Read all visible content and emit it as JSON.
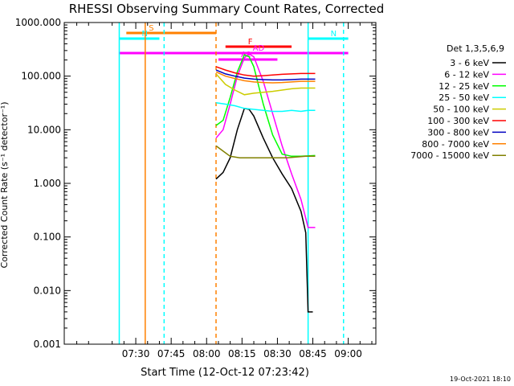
{
  "chart_data": {
    "type": "line",
    "title": "RHESSI Observing Summary Count Rates, Corrected",
    "xlabel": "Start Time (12-Oct-12 07:23:42)",
    "ylabel": "Corrected Count Rate (s⁻¹ detector⁻¹)",
    "ylog": true,
    "ylim": [
      0.001,
      1000
    ],
    "xlim_minutes": [
      -24.0,
      108.0
    ],
    "x_ticks": [
      "07:30",
      "07:45",
      "08:00",
      "08:15",
      "08:30",
      "08:45",
      "09:00"
    ],
    "y_ticks": [
      "1000.000",
      "100.000",
      "10.000",
      "1.000",
      "0.100",
      "0.010",
      "0.001"
    ],
    "legend_title": "Det 1,3,5,6,9",
    "legend_position": "right",
    "timestamp": "19-Oct-2021 18:10",
    "flags": [
      {
        "label": "S",
        "color": "#ff8000",
        "start": "07:26",
        "end": "08:04"
      },
      {
        "label": "N",
        "color": "#00ffff",
        "start": "07:23",
        "end": "07:40"
      },
      {
        "label": "N",
        "color": "#00ffff",
        "start": "08:43",
        "end": "09:00"
      },
      {
        "label": "F",
        "color": "#ff0000",
        "start": "08:08",
        "end": "08:36"
      },
      {
        "label": "AD",
        "color": "#ff00ff",
        "start": "08:10",
        "end": "08:32"
      },
      {
        "label": "A1",
        "color": "#ff00ff",
        "start": "08:05",
        "end": "08:30"
      },
      {
        "label": "",
        "color": "#ff00ff",
        "start": "07:23",
        "end": "09:00"
      }
    ],
    "vlines": [
      {
        "time": "07:23",
        "color": "#00ffff",
        "style": "solid"
      },
      {
        "time": "07:34",
        "color": "#ff8000",
        "style": "solid"
      },
      {
        "time": "07:42",
        "color": "#00ffff",
        "style": "dashed"
      },
      {
        "time": "08:04",
        "color": "#ff8000",
        "style": "dashed"
      },
      {
        "time": "08:43",
        "color": "#00ffff",
        "style": "solid"
      },
      {
        "time": "08:58",
        "color": "#00ffff",
        "style": "dashed"
      }
    ],
    "series": [
      {
        "name": "3 - 6 keV",
        "color": "#000000",
        "points": [
          [
            "08:04",
            1.2
          ],
          [
            "08:07",
            1.6
          ],
          [
            "08:10",
            3
          ],
          [
            "08:13",
            10
          ],
          [
            "08:16",
            25
          ],
          [
            "08:18",
            24
          ],
          [
            "08:20",
            18
          ],
          [
            "08:24",
            7
          ],
          [
            "08:28",
            3
          ],
          [
            "08:32",
            1.5
          ],
          [
            "08:36",
            0.8
          ],
          [
            "08:40",
            0.3
          ],
          [
            "08:42",
            0.12
          ],
          [
            "08:43",
            0.004
          ],
          [
            "08:45",
            0.004
          ]
        ]
      },
      {
        "name": "6 - 12 keV",
        "color": "#ff00ff",
        "points": [
          [
            "08:04",
            7
          ],
          [
            "08:07",
            10
          ],
          [
            "08:10",
            30
          ],
          [
            "08:13",
            100
          ],
          [
            "08:16",
            220
          ],
          [
            "08:18",
            260
          ],
          [
            "08:20",
            230
          ],
          [
            "08:24",
            80
          ],
          [
            "08:28",
            20
          ],
          [
            "08:32",
            5
          ],
          [
            "08:36",
            1.5
          ],
          [
            "08:40",
            0.5
          ],
          [
            "08:43",
            0.15
          ],
          [
            "08:46",
            0.15
          ]
        ]
      },
      {
        "name": "12 - 25 keV",
        "color": "#00ff00",
        "points": [
          [
            "08:04",
            12
          ],
          [
            "08:07",
            15
          ],
          [
            "08:10",
            40
          ],
          [
            "08:13",
            120
          ],
          [
            "08:16",
            250
          ],
          [
            "08:18",
            230
          ],
          [
            "08:20",
            150
          ],
          [
            "08:24",
            30
          ],
          [
            "08:28",
            8
          ],
          [
            "08:32",
            3.5
          ],
          [
            "08:36",
            3.2
          ],
          [
            "08:40",
            3.2
          ],
          [
            "08:46",
            3.3
          ]
        ]
      },
      {
        "name": "25 - 50 keV",
        "color": "#00ffff",
        "points": [
          [
            "08:04",
            32
          ],
          [
            "08:08",
            30
          ],
          [
            "08:12",
            28
          ],
          [
            "08:16",
            25
          ],
          [
            "08:20",
            24
          ],
          [
            "08:24",
            23
          ],
          [
            "08:28",
            22
          ],
          [
            "08:32",
            22
          ],
          [
            "08:36",
            23
          ],
          [
            "08:40",
            22
          ],
          [
            "08:43",
            23
          ],
          [
            "08:46",
            23
          ]
        ]
      },
      {
        "name": "50 - 100 keV",
        "color": "#cccc00",
        "points": [
          [
            "08:04",
            110
          ],
          [
            "08:08",
            70
          ],
          [
            "08:12",
            55
          ],
          [
            "08:16",
            45
          ],
          [
            "08:20",
            48
          ],
          [
            "08:24",
            50
          ],
          [
            "08:28",
            52
          ],
          [
            "08:32",
            55
          ],
          [
            "08:36",
            58
          ],
          [
            "08:40",
            60
          ],
          [
            "08:46",
            60
          ]
        ]
      },
      {
        "name": "100 - 300 keV",
        "color": "#ff0000",
        "points": [
          [
            "08:04",
            150
          ],
          [
            "08:08",
            130
          ],
          [
            "08:12",
            115
          ],
          [
            "08:16",
            105
          ],
          [
            "08:20",
            100
          ],
          [
            "08:24",
            102
          ],
          [
            "08:28",
            105
          ],
          [
            "08:32",
            108
          ],
          [
            "08:36",
            110
          ],
          [
            "08:40",
            112
          ],
          [
            "08:46",
            112
          ]
        ]
      },
      {
        "name": "300 - 800 keV",
        "color": "#0000c0",
        "points": [
          [
            "08:04",
            130
          ],
          [
            "08:08",
            110
          ],
          [
            "08:12",
            100
          ],
          [
            "08:16",
            92
          ],
          [
            "08:20",
            88
          ],
          [
            "08:24",
            86
          ],
          [
            "08:28",
            85
          ],
          [
            "08:32",
            85
          ],
          [
            "08:36",
            86
          ],
          [
            "08:40",
            88
          ],
          [
            "08:46",
            88
          ]
        ]
      },
      {
        "name": "800 - 7000 keV",
        "color": "#ff8000",
        "points": [
          [
            "08:04",
            120
          ],
          [
            "08:08",
            100
          ],
          [
            "08:12",
            90
          ],
          [
            "08:16",
            82
          ],
          [
            "08:20",
            78
          ],
          [
            "08:24",
            76
          ],
          [
            "08:28",
            75
          ],
          [
            "08:32",
            76
          ],
          [
            "08:36",
            78
          ],
          [
            "08:40",
            80
          ],
          [
            "08:46",
            80
          ]
        ]
      },
      {
        "name": "7000 - 15000 keV",
        "color": "#808000",
        "points": [
          [
            "08:04",
            5
          ],
          [
            "08:07",
            4
          ],
          [
            "08:10",
            3.2
          ],
          [
            "08:14",
            3
          ],
          [
            "08:18",
            3
          ],
          [
            "08:22",
            3
          ],
          [
            "08:26",
            3
          ],
          [
            "08:30",
            3
          ],
          [
            "08:34",
            3
          ],
          [
            "08:38",
            3.1
          ],
          [
            "08:42",
            3.2
          ],
          [
            "08:46",
            3.2
          ]
        ]
      }
    ]
  }
}
